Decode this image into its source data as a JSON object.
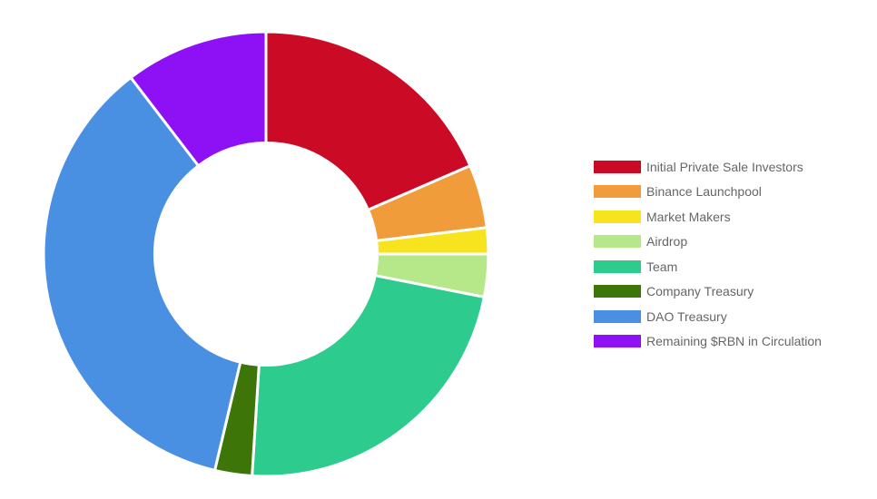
{
  "chart_data": {
    "type": "pie",
    "variant": "donut",
    "hole_ratio": 0.5,
    "start_angle_deg": 0,
    "direction": "clockwise",
    "grid": false,
    "title": "",
    "legend_position": "right",
    "slice_border_color": "#ffffff",
    "segments": [
      {
        "label": "Initial Private Sale Investors",
        "value_pct": 18.5,
        "color": "#cb0a26"
      },
      {
        "label": "Binance Launchpool",
        "value_pct": 4.6,
        "color": "#f09c3b"
      },
      {
        "label": "Market Makers",
        "value_pct": 1.9,
        "color": "#f7e41e"
      },
      {
        "label": "Airdrop",
        "value_pct": 3.1,
        "color": "#b6e788"
      },
      {
        "label": "Team",
        "value_pct": 22.9,
        "color": "#2dcb8e"
      },
      {
        "label": "Company Treasury",
        "value_pct": 2.7,
        "color": "#3d7508"
      },
      {
        "label": "DAO Treasury",
        "value_pct": 35.9,
        "color": "#4a90e2"
      },
      {
        "label": "Remaining $RBN in Circulation",
        "value_pct": 10.4,
        "color": "#8e11f5"
      }
    ],
    "legend_text_color": "#666666"
  }
}
